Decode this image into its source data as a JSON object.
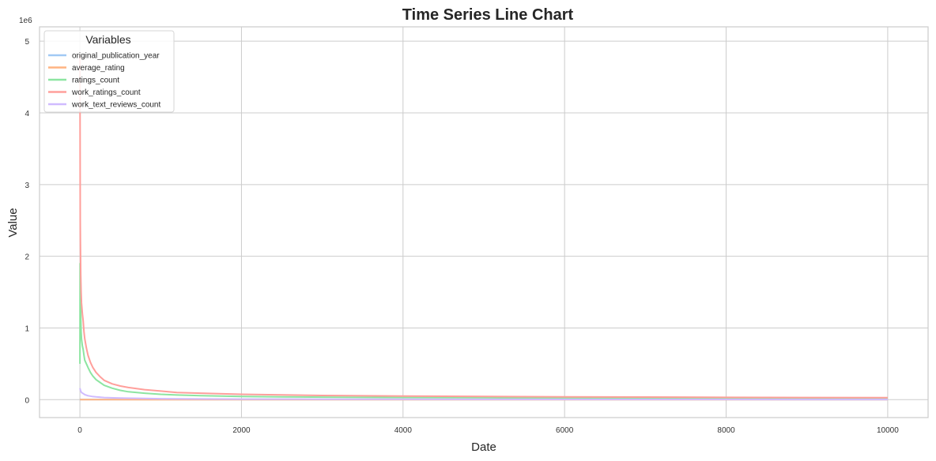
{
  "chart_data": {
    "type": "line",
    "title": "Time Series Line Chart",
    "xlabel": "Date",
    "ylabel": "Value",
    "y_offset_label": "1e6",
    "xlim": [
      -500,
      10500
    ],
    "ylim": [
      -0.25,
      5.2
    ],
    "x_ticks": [
      0,
      2000,
      4000,
      6000,
      8000,
      10000
    ],
    "x_tick_labels": [
      "0",
      "2000",
      "4000",
      "6000",
      "8000",
      "10000"
    ],
    "y_ticks": [
      0,
      1,
      2,
      3,
      4,
      5
    ],
    "y_tick_labels": [
      "0",
      "1",
      "2",
      "3",
      "4",
      "5"
    ],
    "grid": true,
    "legend": {
      "title": "Variables",
      "placement": "top-left"
    },
    "series": [
      {
        "name": "original_publication_year",
        "color": "#a1c9f4",
        "x": [
          0,
          10000
        ],
        "y": [
          0.002,
          0.002
        ]
      },
      {
        "name": "average_rating",
        "color": "#ffb482",
        "x": [
          0,
          10000
        ],
        "y": [
          4e-06,
          4e-06
        ]
      },
      {
        "name": "ratings_count",
        "color": "#8de5a1",
        "x": [
          0,
          2,
          5,
          10,
          15,
          20,
          30,
          40,
          50,
          60,
          80,
          100,
          130,
          160,
          200,
          250,
          300,
          400,
          500,
          600,
          800,
          1000,
          1200,
          1500,
          2000,
          2500,
          3000,
          4000,
          5000,
          6000,
          7000,
          8000,
          9000,
          10000
        ],
        "y": [
          0.5,
          1.9,
          1.5,
          1.2,
          0.95,
          0.85,
          0.75,
          0.7,
          0.62,
          0.55,
          0.5,
          0.45,
          0.38,
          0.33,
          0.28,
          0.24,
          0.2,
          0.16,
          0.13,
          0.11,
          0.09,
          0.075,
          0.065,
          0.055,
          0.045,
          0.04,
          0.035,
          0.03,
          0.026,
          0.023,
          0.021,
          0.019,
          0.017,
          0.016
        ]
      },
      {
        "name": "work_ratings_count",
        "color": "#ff9f9b",
        "x": [
          0,
          2,
          4,
          6,
          10,
          15,
          20,
          30,
          40,
          50,
          60,
          80,
          100,
          130,
          160,
          200,
          250,
          300,
          400,
          500,
          600,
          800,
          1000,
          1200,
          1500,
          2000,
          2500,
          3000,
          4000,
          5000,
          6000,
          7000,
          7400,
          8000,
          9000,
          10000
        ],
        "y": [
          4.8,
          3.8,
          2.5,
          2.2,
          1.75,
          1.5,
          1.35,
          1.2,
          1.1,
          0.95,
          0.85,
          0.72,
          0.62,
          0.52,
          0.45,
          0.38,
          0.32,
          0.27,
          0.22,
          0.19,
          0.17,
          0.14,
          0.12,
          0.1,
          0.09,
          0.075,
          0.066,
          0.058,
          0.05,
          0.045,
          0.04,
          0.036,
          0.035,
          0.032,
          0.03,
          0.028
        ]
      },
      {
        "name": "work_text_reviews_count",
        "color": "#d0bbff",
        "x": [
          0,
          5,
          10,
          20,
          40,
          60,
          100,
          150,
          200,
          300,
          500,
          800,
          1000,
          1500,
          2000,
          3000,
          5000,
          7000,
          10000
        ],
        "y": [
          0.16,
          0.14,
          0.12,
          0.1,
          0.085,
          0.07,
          0.055,
          0.045,
          0.038,
          0.03,
          0.022,
          0.016,
          0.013,
          0.01,
          0.008,
          0.006,
          0.004,
          0.003,
          0.002
        ]
      }
    ]
  }
}
